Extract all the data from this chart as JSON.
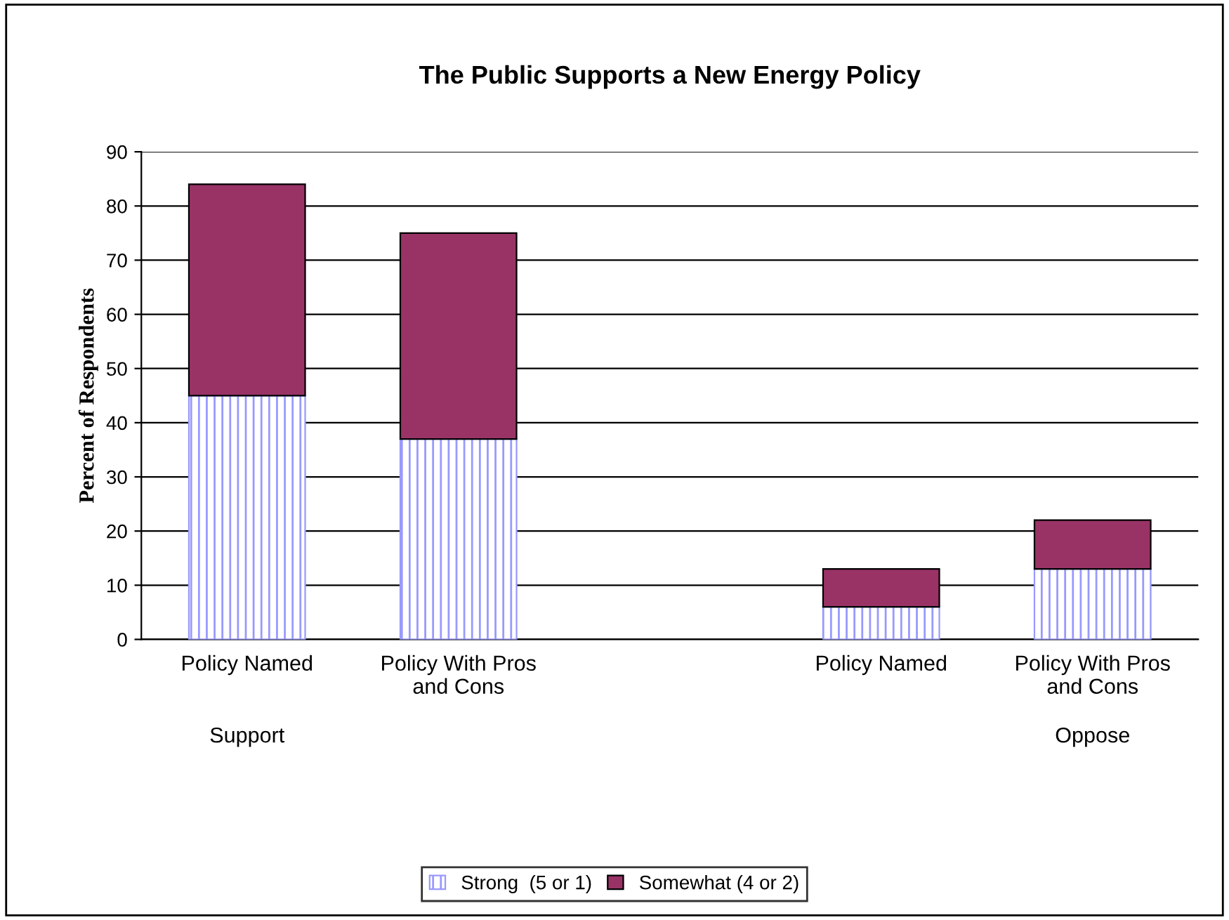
{
  "chart_data": {
    "type": "bar",
    "title": "The Public Supports a New Energy Policy",
    "ylabel": "Percent of Respondents",
    "categories": [
      "Policy Named",
      "Policy With Pros\nand Cons",
      null,
      "Policy Named",
      "Policy With Pros\nand Cons"
    ],
    "series": [
      {
        "name": "Strong  (5 or 1)",
        "color": "#9999ff",
        "values": [
          45,
          37,
          null,
          6,
          13
        ]
      },
      {
        "name": "Somewhat (4 or 2)",
        "color": "#993366",
        "values": [
          39,
          38,
          null,
          7,
          9
        ]
      }
    ],
    "stacked": true,
    "ylim": [
      0,
      90
    ],
    "yticks": [
      0,
      10,
      20,
      30,
      40,
      50,
      60,
      70,
      80,
      90
    ],
    "grid": "y",
    "legend": "bottom",
    "annotations": [
      "Support",
      "Oppose"
    ]
  }
}
